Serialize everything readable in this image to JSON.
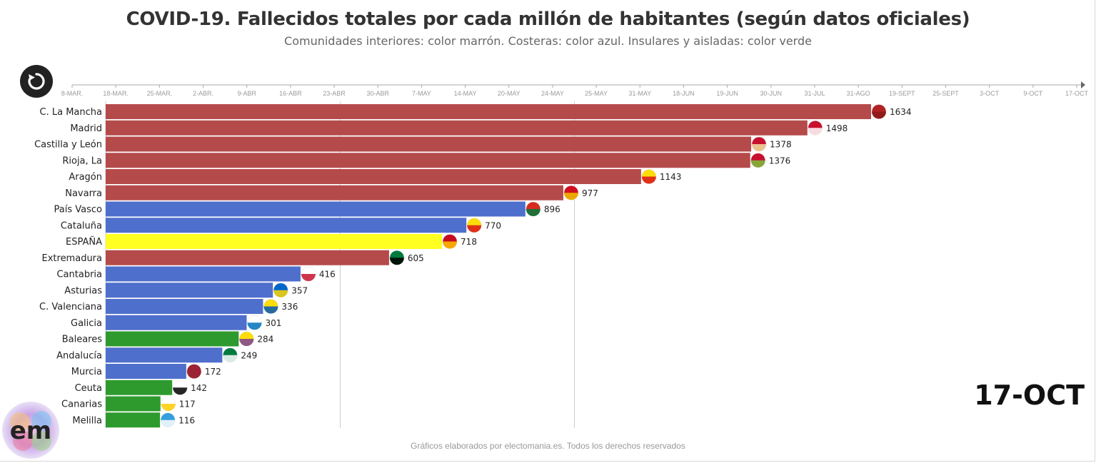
{
  "title": "COVID-19. Fallecidos totales por cada millón de habitantes (según datos oficiales)",
  "subtitle": "Comunidades interiores: color marrón. Costeras: color azul. Insulares y aisladas: color verde",
  "current_date": "17-OCT",
  "footer": "Gráficos elaborados por electomania.es. Todos los derechos reservados",
  "logo_text": "em",
  "replay_icon": "replay-icon",
  "colors": {
    "interior": "#b54a4a",
    "costera": "#4f6fcc",
    "insular": "#2e9a2e",
    "espana": "#ffff22",
    "timeline": "#aaaaaa",
    "gridline": "#cccccc"
  },
  "timeline_ticks": [
    "8-MAR.",
    "18-MAR.",
    "25-MAR.",
    "2-ABR.",
    "9-ABR",
    "16-ABR",
    "23-ABR",
    "30-ABR",
    "7-MAY",
    "14-MAY",
    "20-MAY",
    "24-MAY",
    "25-MAY",
    "31-MAY",
    "18-JUN",
    "19-JUN",
    "30-JUN",
    "31-JUL",
    "31-AGO",
    "19-SEPT",
    "25-SEPT",
    "3-OCT",
    "9-OCT",
    "17-OCT"
  ],
  "chart_data": {
    "type": "bar",
    "orientation": "horizontal",
    "title": "COVID-19. Fallecidos totales por cada millón de habitantes (según datos oficiales)",
    "grid": true,
    "xlim": [
      0,
      1650
    ],
    "categories": [
      "C. La Mancha",
      "Madrid",
      "Castilla y León",
      "Rioja, La",
      "Aragón",
      "Navarra",
      "País Vasco",
      "Cataluña",
      "ESPAÑA",
      "Extremadura",
      "Cantabria",
      "Asturias",
      "C. Valenciana",
      "Galicia",
      "Baleares",
      "Andalucía",
      "Murcia",
      "Ceuta",
      "Canarias",
      "Melilla"
    ],
    "values": [
      1634,
      1498,
      1378,
      1376,
      1143,
      977,
      896,
      770,
      718,
      605,
      416,
      357,
      336,
      301,
      284,
      249,
      172,
      142,
      117,
      116
    ],
    "groups": [
      "interior",
      "interior",
      "interior",
      "interior",
      "interior",
      "interior",
      "costera",
      "costera",
      "espana",
      "interior",
      "costera",
      "costera",
      "costera",
      "costera",
      "insular",
      "costera",
      "costera",
      "insular",
      "insular",
      "insular"
    ],
    "flag_icons": [
      "clm-flag-icon",
      "madrid-flag-icon",
      "castilla-leon-flag-icon",
      "rioja-flag-icon",
      "aragon-flag-icon",
      "navarra-flag-icon",
      "pais-vasco-flag-icon",
      "cataluna-flag-icon",
      "espana-flag-icon",
      "extremadura-flag-icon",
      "cantabria-flag-icon",
      "asturias-flag-icon",
      "valenciana-flag-icon",
      "galicia-flag-icon",
      "baleares-flag-icon",
      "andalucia-flag-icon",
      "murcia-flag-icon",
      "ceuta-flag-icon",
      "canarias-flag-icon",
      "melilla-flag-icon"
    ]
  }
}
